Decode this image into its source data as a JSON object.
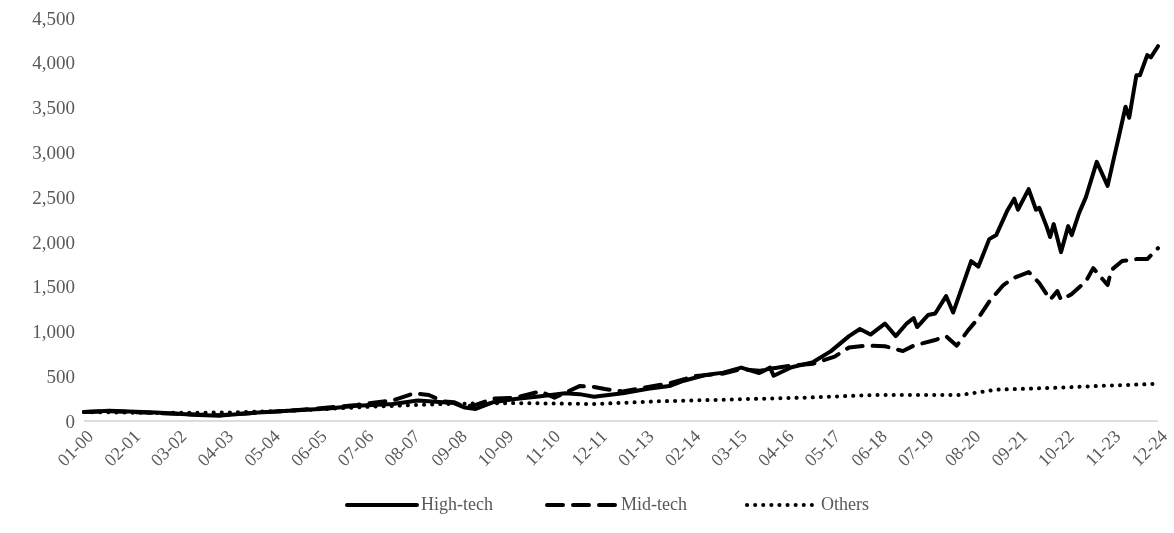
{
  "chart_data": {
    "type": "line",
    "xlim": [
      "2000-01",
      "2024-12"
    ],
    "ylim": [
      0,
      4500
    ],
    "yticks": [
      0,
      {
        "value": 500,
        "label": "500"
      },
      {
        "value": 1000,
        "label": "1,000"
      },
      {
        "value": 1500,
        "label": "1,500"
      },
      {
        "value": 2000,
        "label": "2,000"
      },
      {
        "value": 2500,
        "label": "2,500"
      },
      {
        "value": 3000,
        "label": "3,000"
      },
      {
        "value": 3500,
        "label": "3,500"
      },
      {
        "value": 4000,
        "label": "4,000"
      },
      {
        "value": 4500,
        "label": "4,500"
      }
    ],
    "xticks": [
      {
        "value": "2000-01",
        "label": "01-00"
      },
      {
        "value": "2001-02",
        "label": "02-01"
      },
      {
        "value": "2002-03",
        "label": "03-02"
      },
      {
        "value": "2003-04",
        "label": "04-03"
      },
      {
        "value": "2004-05",
        "label": "05-04"
      },
      {
        "value": "2005-06",
        "label": "06-05"
      },
      {
        "value": "2006-07",
        "label": "07-06"
      },
      {
        "value": "2007-08",
        "label": "08-07"
      },
      {
        "value": "2008-09",
        "label": "09-08"
      },
      {
        "value": "2009-10",
        "label": "10-09"
      },
      {
        "value": "2010-11",
        "label": "11-10"
      },
      {
        "value": "2011-12",
        "label": "12-11"
      },
      {
        "value": "2013-01",
        "label": "01-13"
      },
      {
        "value": "2014-02",
        "label": "02-14"
      },
      {
        "value": "2015-03",
        "label": "03-15"
      },
      {
        "value": "2016-04",
        "label": "04-16"
      },
      {
        "value": "2017-05",
        "label": "05-17"
      },
      {
        "value": "2018-06",
        "label": "06-18"
      },
      {
        "value": "2019-07",
        "label": "07-19"
      },
      {
        "value": "2020-08",
        "label": "08-20"
      },
      {
        "value": "2021-09",
        "label": "09-21"
      },
      {
        "value": "2022-10",
        "label": "10-22"
      },
      {
        "value": "2023-11",
        "label": "11-23"
      },
      {
        "value": "2024-12",
        "label": "12-24"
      }
    ],
    "grid": false,
    "legend": "bottom",
    "series": [
      {
        "name": "High-tech",
        "color": "#000000",
        "line_style": "solid",
        "x": [
          "2000-01",
          "2000-08",
          "2001-09",
          "2002-09",
          "2003-03",
          "2003-10",
          "2004-10",
          "2005-09",
          "2006-05",
          "2007-03",
          "2007-10",
          "2008-03",
          "2008-08",
          "2008-11",
          "2009-02",
          "2009-07",
          "2010-01",
          "2010-07",
          "2011-03",
          "2011-07",
          "2011-11",
          "2012-07",
          "2013-02",
          "2013-08",
          "2013-12",
          "2014-06",
          "2014-11",
          "2015-04",
          "2015-09",
          "2015-12",
          "2016-01",
          "2016-06",
          "2016-12",
          "2017-05",
          "2017-10",
          "2018-01",
          "2018-04",
          "2018-08",
          "2018-11",
          "2019-02",
          "2019-04",
          "2019-05",
          "2019-08",
          "2019-10",
          "2020-01",
          "2020-03",
          "2020-08",
          "2020-10",
          "2021-01",
          "2021-03",
          "2021-06",
          "2021-08",
          "2021-09",
          "2021-12",
          "2022-02",
          "2022-03",
          "2022-05",
          "2022-06",
          "2022-07",
          "2022-09",
          "2022-11",
          "2022-12",
          "2023-02",
          "2023-04",
          "2023-07",
          "2023-10",
          "2023-12",
          "2024-01",
          "2024-03",
          "2024-04",
          "2024-06",
          "2024-07",
          "2024-09",
          "2024-10",
          "2024-12"
        ],
        "values": [
          100,
          115,
          95,
          67,
          60,
          85,
          115,
          140,
          170,
          190,
          230,
          215,
          200,
          150,
          135,
          210,
          245,
          270,
          310,
          300,
          270,
          310,
          360,
          390,
          450,
          513,
          540,
          596,
          535,
          596,
          505,
          600,
          658,
          780,
          948,
          1027,
          965,
          1088,
          948,
          1088,
          1150,
          1049,
          1183,
          1200,
          1395,
          1211,
          1786,
          1724,
          2031,
          2076,
          2344,
          2483,
          2359,
          2589,
          2359,
          2380,
          2176,
          2054,
          2199,
          1886,
          2176,
          2076,
          2321,
          2503,
          2893,
          2626,
          2980,
          3158,
          3509,
          3386,
          3861,
          3861,
          4085,
          4060,
          4185
        ]
      },
      {
        "name": "Mid-tech",
        "color": "#000000",
        "line_style": "dashed",
        "x": [
          "2000-01",
          "2000-08",
          "2001-09",
          "2002-09",
          "2003-03",
          "2003-10",
          "2004-10",
          "2005-09",
          "2006-05",
          "2007-03",
          "2007-09",
          "2008-01",
          "2008-05",
          "2008-08",
          "2008-11",
          "2009-02",
          "2009-07",
          "2010-01",
          "2010-08",
          "2010-12",
          "2011-07",
          "2011-11",
          "2012-02",
          "2012-07",
          "2013-02",
          "2013-08",
          "2014-03",
          "2014-11",
          "2015-04",
          "2015-09",
          "2016-01",
          "2016-06",
          "2016-12",
          "2017-06",
          "2017-10",
          "2018-03",
          "2018-08",
          "2019-01",
          "2019-04",
          "2019-10",
          "2020-01",
          "2020-04",
          "2020-07",
          "2020-10",
          "2021-01",
          "2021-05",
          "2021-08",
          "2021-12",
          "2022-03",
          "2022-06",
          "2022-08",
          "2022-09",
          "2022-12",
          "2023-04",
          "2023-06",
          "2023-10",
          "2023-11",
          "2024-02",
          "2024-06",
          "2024-09",
          "2024-12"
        ],
        "values": [
          100,
          110,
          90,
          70,
          65,
          85,
          115,
          150,
          180,
          230,
          310,
          290,
          220,
          210,
          160,
          180,
          250,
          260,
          330,
          260,
          390,
          380,
          357,
          330,
          380,
          420,
          500,
          530,
          580,
          560,
          590,
          620,
          640,
          719,
          821,
          841,
          835,
          781,
          841,
          904,
          948,
          841,
          1004,
          1150,
          1334,
          1518,
          1600,
          1663,
          1540,
          1355,
          1450,
          1355,
          1417,
          1562,
          1707,
          1518,
          1685,
          1786,
          1808,
          1808,
          1930
        ]
      },
      {
        "name": "Others",
        "color": "#000000",
        "line_style": "dotted",
        "x": [
          "2000-01",
          "2001-09",
          "2003-05",
          "2005-01",
          "2006-09",
          "2008-05",
          "2010-01",
          "2011-11",
          "2013-05",
          "2015-01",
          "2016-09",
          "2018-05",
          "2019-07",
          "2020-05",
          "2021-03",
          "2022-07",
          "2023-10",
          "2024-12"
        ],
        "values": [
          100,
          90,
          95,
          120,
          160,
          190,
          200,
          190,
          220,
          240,
          260,
          290,
          290,
          290,
          350,
          370,
          395,
          415
        ]
      }
    ]
  }
}
